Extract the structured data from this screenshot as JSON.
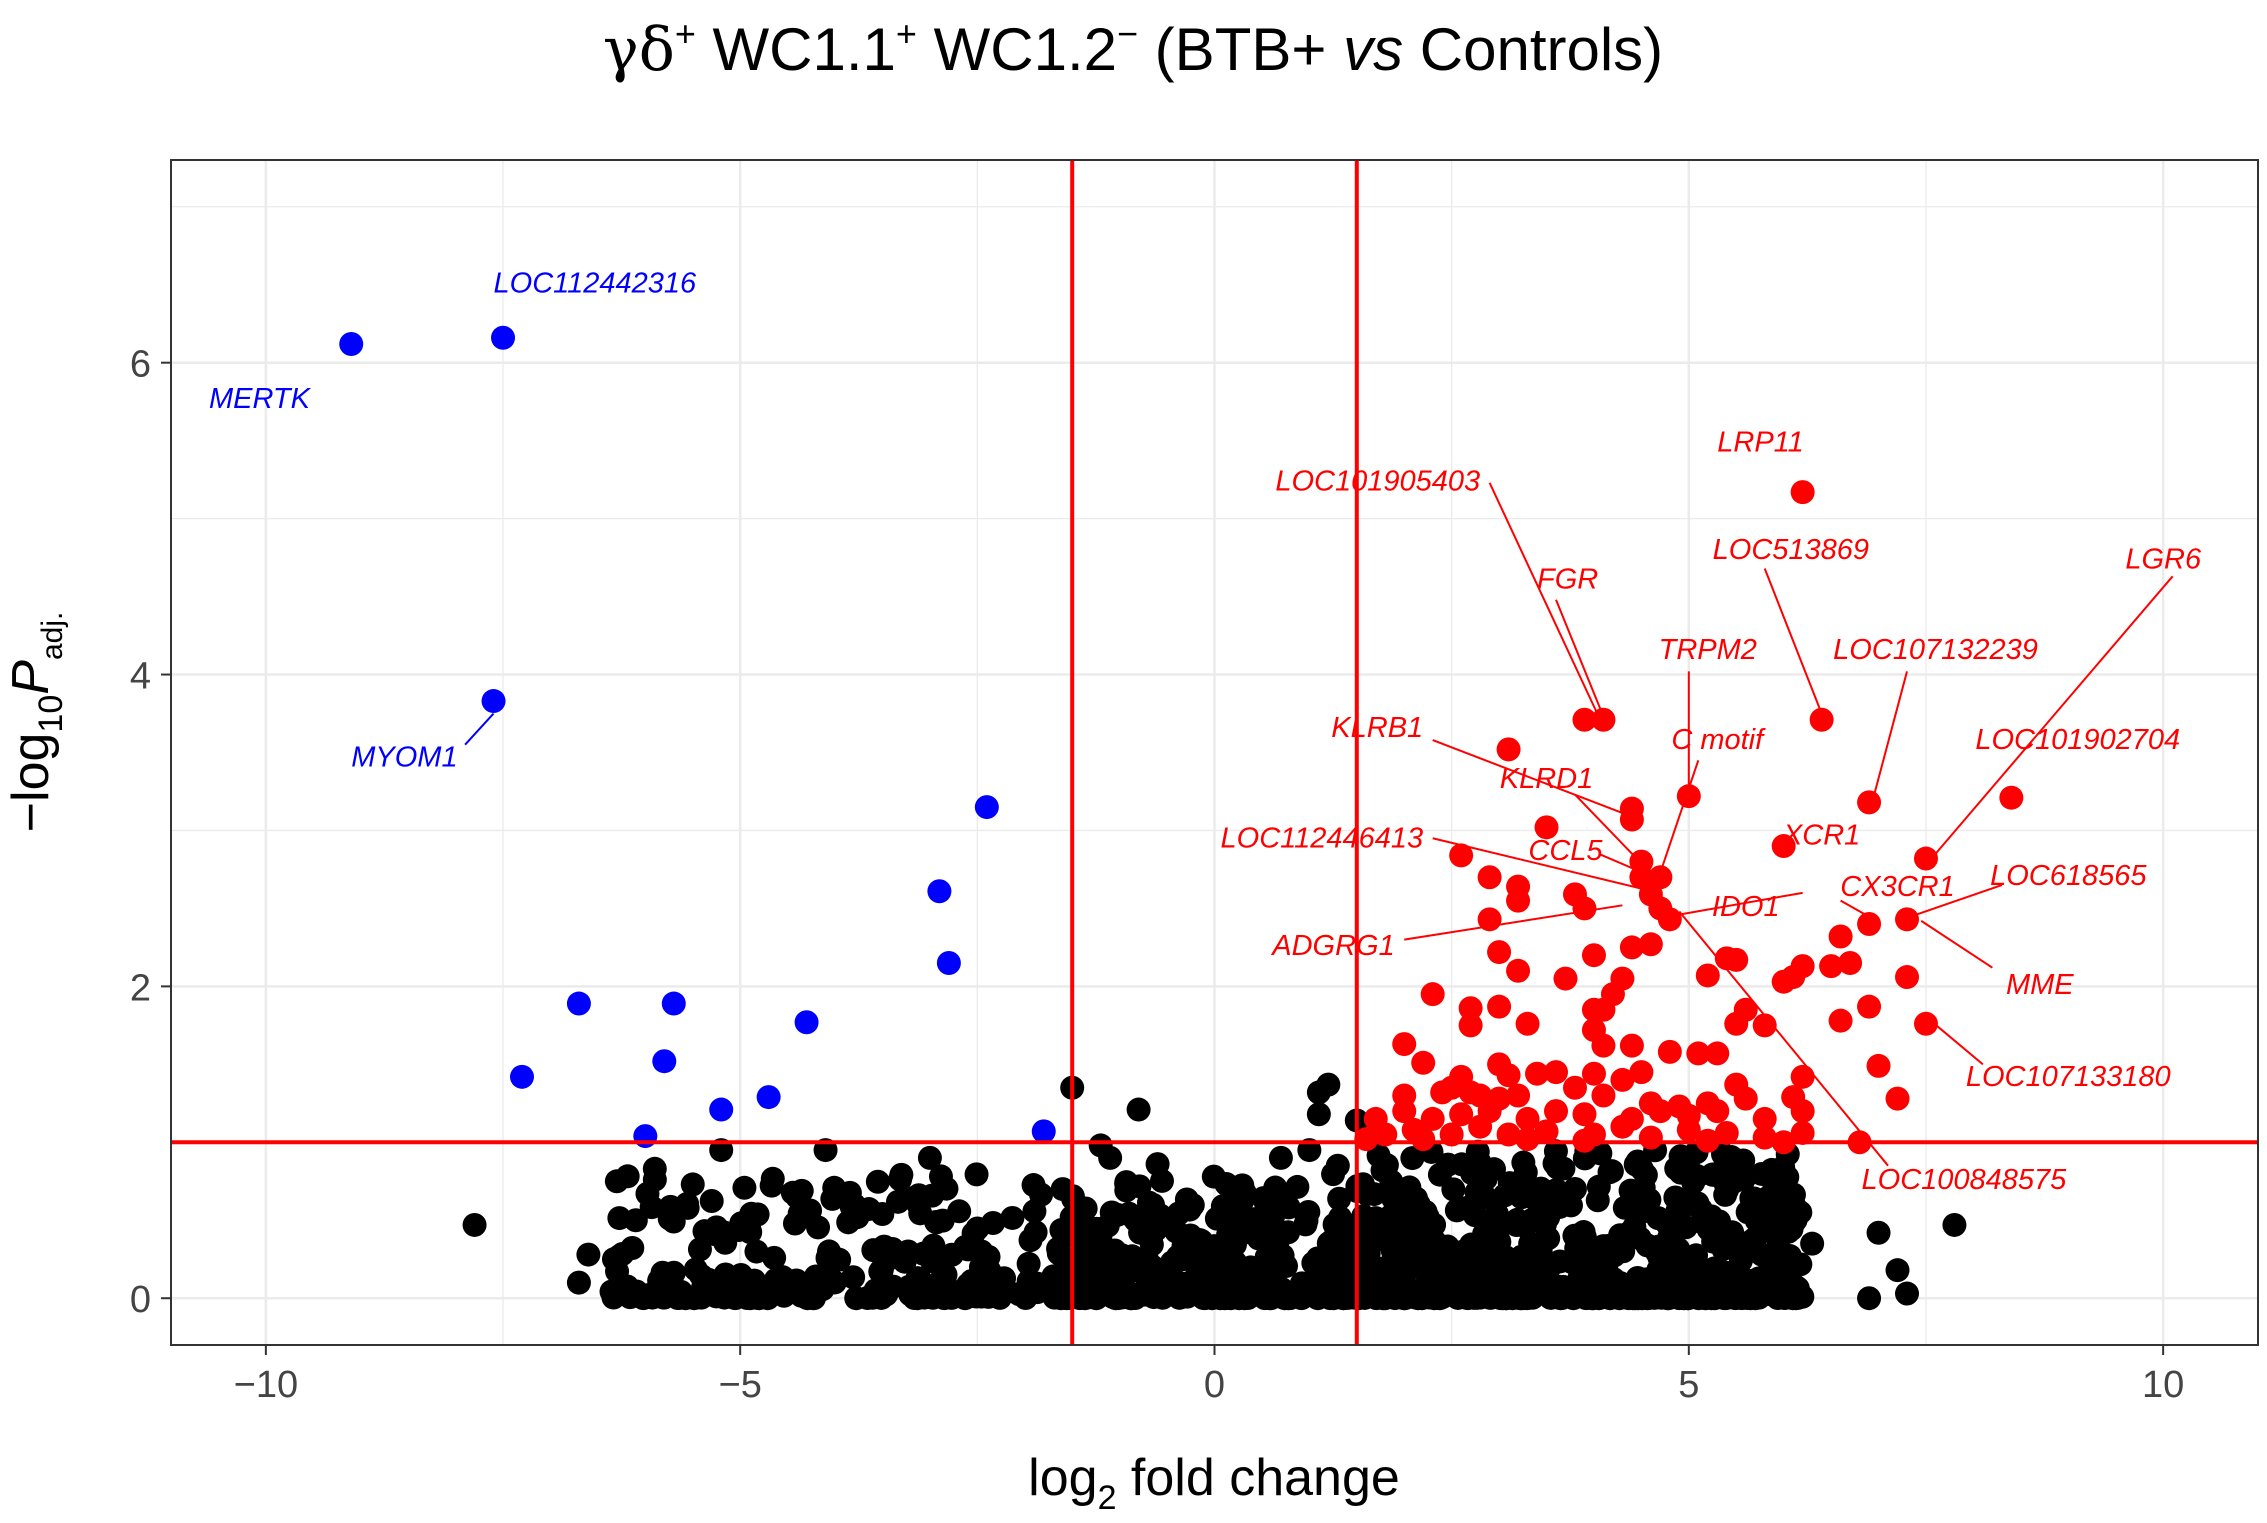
{
  "chart_data": {
    "type": "scatter",
    "title": {
      "prefix": "γδ",
      "prefix_sup": "+",
      "part1": " WC1.1",
      "part1_sup": "+",
      "part2": " WC1.2",
      "part2_sup": "−",
      "paren_open": " (",
      "part3": "BTB+ ",
      "vs": "vs",
      "part4": " Controls",
      "paren_close": ")"
    },
    "xlabel": {
      "main": "log",
      "sub": "2",
      "rest": " fold change"
    },
    "ylabel": {
      "main": "−log",
      "sub": "10",
      "italic": "P",
      "sub2": "adj."
    },
    "xlim": [
      -11,
      11
    ],
    "ylim": [
      -0.3,
      7.3
    ],
    "x_ticks": [
      -10,
      -5,
      0,
      5,
      10
    ],
    "x_tick_labels": [
      "−10",
      "−5",
      "0",
      "5",
      "10"
    ],
    "y_ticks": [
      0,
      2,
      4,
      6
    ],
    "y_tick_labels": [
      "0",
      "2",
      "4",
      "6"
    ],
    "thresholds": {
      "fc_left": -1.5,
      "fc_right": 1.5,
      "p": 1.0
    },
    "colors": {
      "up": "#ff0000",
      "down": "#0000ff",
      "ns": "#000000",
      "threshold": "#ff0000",
      "grid": "#ebebeb"
    },
    "down_points": [
      [
        -9.1,
        6.12
      ],
      [
        -7.5,
        6.16
      ],
      [
        -7.6,
        3.83
      ],
      [
        -2.4,
        3.15
      ],
      [
        -2.9,
        2.61
      ],
      [
        -2.8,
        2.15
      ],
      [
        -6.7,
        1.89
      ],
      [
        -5.7,
        1.89
      ],
      [
        -4.3,
        1.77
      ],
      [
        -5.8,
        1.52
      ],
      [
        -7.3,
        1.42
      ],
      [
        -4.7,
        1.29
      ],
      [
        -5.2,
        1.21
      ],
      [
        -6.0,
        1.04
      ],
      [
        -1.8,
        1.07
      ]
    ],
    "up_points": [
      [
        6.2,
        5.17
      ],
      [
        3.9,
        3.71
      ],
      [
        4.1,
        3.71
      ],
      [
        6.4,
        3.71
      ],
      [
        3.1,
        3.52
      ],
      [
        5.0,
        3.22
      ],
      [
        8.4,
        3.21
      ],
      [
        6.9,
        3.18
      ],
      [
        4.4,
        3.14
      ],
      [
        4.4,
        3.07
      ],
      [
        3.5,
        3.02
      ],
      [
        6.0,
        2.9
      ],
      [
        2.6,
        2.84
      ],
      [
        4.5,
        2.8
      ],
      [
        7.5,
        2.82
      ],
      [
        2.9,
        2.7
      ],
      [
        4.5,
        2.7
      ],
      [
        4.7,
        2.7
      ],
      [
        3.2,
        2.64
      ],
      [
        3.8,
        2.59
      ],
      [
        4.6,
        2.59
      ],
      [
        3.2,
        2.55
      ],
      [
        4.7,
        2.5
      ],
      [
        3.9,
        2.5
      ],
      [
        4.8,
        2.43
      ],
      [
        6.9,
        2.4
      ],
      [
        7.3,
        2.43
      ],
      [
        2.9,
        2.43
      ],
      [
        6.6,
        2.32
      ],
      [
        4.6,
        2.27
      ],
      [
        3.0,
        2.22
      ],
      [
        4.4,
        2.25
      ],
      [
        4.0,
        2.2
      ],
      [
        5.4,
        2.18
      ],
      [
        5.5,
        2.17
      ],
      [
        6.2,
        2.13
      ],
      [
        6.5,
        2.13
      ],
      [
        6.7,
        2.15
      ],
      [
        5.2,
        2.07
      ],
      [
        3.2,
        2.1
      ],
      [
        6.0,
        2.03
      ],
      [
        4.3,
        2.05
      ],
      [
        3.7,
        2.05
      ],
      [
        6.1,
        2.06
      ],
      [
        7.3,
        2.06
      ],
      [
        5.6,
        1.85
      ],
      [
        5.8,
        1.75
      ],
      [
        2.3,
        1.95
      ],
      [
        4.2,
        1.95
      ],
      [
        4.0,
        1.85
      ],
      [
        2.7,
        1.86
      ],
      [
        3.0,
        1.87
      ],
      [
        4.1,
        1.85
      ],
      [
        6.6,
        1.78
      ],
      [
        5.5,
        1.76
      ],
      [
        6.9,
        1.87
      ],
      [
        7.5,
        1.76
      ],
      [
        2.7,
        1.75
      ],
      [
        3.3,
        1.76
      ],
      [
        4.0,
        1.72
      ],
      [
        4.1,
        1.62
      ],
      [
        2.0,
        1.63
      ],
      [
        4.4,
        1.62
      ],
      [
        4.8,
        1.58
      ],
      [
        5.1,
        1.57
      ],
      [
        5.3,
        1.57
      ],
      [
        2.2,
        1.51
      ],
      [
        3.0,
        1.5
      ],
      [
        7.0,
        1.49
      ],
      [
        3.4,
        1.44
      ],
      [
        3.6,
        1.45
      ],
      [
        4.0,
        1.44
      ],
      [
        4.5,
        1.45
      ],
      [
        2.6,
        1.42
      ],
      [
        3.1,
        1.43
      ],
      [
        4.3,
        1.4
      ],
      [
        5.5,
        1.37
      ],
      [
        6.2,
        1.42
      ],
      [
        2.7,
        1.32
      ],
      [
        2.8,
        1.3
      ],
      [
        3.8,
        1.35
      ],
      [
        4.1,
        1.3
      ],
      [
        2.0,
        1.3
      ],
      [
        2.4,
        1.32
      ],
      [
        2.5,
        1.35
      ],
      [
        3.0,
        1.28
      ],
      [
        3.2,
        1.3
      ],
      [
        4.6,
        1.25
      ],
      [
        4.9,
        1.23
      ],
      [
        5.2,
        1.25
      ],
      [
        5.6,
        1.28
      ],
      [
        6.1,
        1.29
      ],
      [
        7.2,
        1.28
      ],
      [
        1.7,
        1.15
      ],
      [
        2.0,
        1.2
      ],
      [
        2.3,
        1.15
      ],
      [
        2.6,
        1.18
      ],
      [
        2.9,
        1.2
      ],
      [
        3.3,
        1.15
      ],
      [
        3.6,
        1.2
      ],
      [
        3.9,
        1.18
      ],
      [
        4.4,
        1.15
      ],
      [
        4.7,
        1.2
      ],
      [
        5.0,
        1.17
      ],
      [
        5.3,
        1.2
      ],
      [
        5.8,
        1.15
      ],
      [
        6.2,
        1.2
      ],
      [
        1.8,
        1.05
      ],
      [
        2.1,
        1.08
      ],
      [
        2.5,
        1.05
      ],
      [
        2.8,
        1.1
      ],
      [
        3.1,
        1.05
      ],
      [
        3.5,
        1.07
      ],
      [
        4.0,
        1.05
      ],
      [
        4.3,
        1.1
      ],
      [
        4.6,
        1.03
      ],
      [
        5.0,
        1.08
      ],
      [
        5.4,
        1.06
      ],
      [
        5.8,
        1.03
      ],
      [
        6.2,
        1.06
      ],
      [
        6.8,
        1.0
      ],
      [
        1.6,
        1.02
      ],
      [
        2.2,
        1.02
      ],
      [
        3.3,
        1.02
      ],
      [
        3.9,
        1.01
      ],
      [
        5.2,
        1.01
      ],
      [
        6.0,
        1.0
      ]
    ],
    "ns_points": [
      [
        -1.5,
        1.35
      ],
      [
        1.2,
        1.37
      ],
      [
        1.1,
        1.32
      ],
      [
        -0.8,
        1.21
      ],
      [
        1.1,
        1.18
      ],
      [
        1.5,
        1.14
      ],
      [
        -1.2,
        0.98
      ],
      [
        -1.1,
        0.9
      ],
      [
        0.7,
        0.9
      ],
      [
        1.0,
        0.95
      ],
      [
        -0.6,
        0.86
      ],
      [
        -3.0,
        0.9
      ],
      [
        -4.1,
        0.95
      ],
      [
        -5.2,
        0.95
      ],
      [
        -5.9,
        0.83
      ],
      [
        -6.3,
        0.75
      ],
      [
        -5.5,
        0.73
      ],
      [
        -6.1,
        0.5
      ],
      [
        -6.6,
        0.28
      ],
      [
        -6.7,
        0.1
      ],
      [
        -7.8,
        0.47
      ],
      [
        -4.4,
        0.65
      ],
      [
        -3.8,
        0.6
      ],
      [
        -1.6,
        0.7
      ],
      [
        1.3,
        0.85
      ],
      [
        7.0,
        0.42
      ],
      [
        7.8,
        0.47
      ],
      [
        7.2,
        0.18
      ],
      [
        7.3,
        0.03
      ],
      [
        6.9,
        0.0
      ],
      [
        6.1,
        0.53
      ],
      [
        6.3,
        0.35
      ],
      [
        5.9,
        0.7
      ],
      [
        6.0,
        0.24
      ]
    ],
    "ns_cloud": [
      {
        "x_from": -6.4,
        "x_to": -1.5,
        "count": 240,
        "max_y": 0.8
      },
      {
        "x_from": -1.6,
        "x_to": 1.6,
        "count": 340,
        "max_y": 0.8
      },
      {
        "x_from": 1.5,
        "x_to": 6.2,
        "count": 600,
        "max_y": 0.95
      }
    ],
    "labels": [
      {
        "text": "MERTK",
        "color": "down",
        "x": -10.6,
        "y": 5.76,
        "anchor": "start"
      },
      {
        "text": "LOC112442316",
        "color": "down",
        "x": -7.6,
        "y": 6.5,
        "anchor": "start"
      },
      {
        "text": "MYOM1",
        "color": "down",
        "x": -9.1,
        "y": 3.46,
        "anchor": "start",
        "line_to": [
          -7.6,
          3.75
        ],
        "line_from": [
          -7.9,
          3.55
        ]
      },
      {
        "text": "LRP11",
        "color": "up",
        "x": 5.3,
        "y": 5.48,
        "anchor": "start"
      },
      {
        "text": "LOC101905403",
        "color": "up",
        "x": 2.8,
        "y": 5.23,
        "anchor": "end",
        "line_from": [
          2.9,
          5.23
        ],
        "line_to": [
          4.05,
          3.73
        ]
      },
      {
        "text": "LOC513869",
        "color": "up",
        "x": 6.9,
        "y": 4.79,
        "anchor": "end",
        "line_from": [
          5.8,
          4.68
        ],
        "line_to": [
          6.4,
          3.75
        ]
      },
      {
        "text": "LGR6",
        "color": "up",
        "x": 10.4,
        "y": 4.73,
        "anchor": "end",
        "line_from": [
          10.1,
          4.63
        ],
        "line_to": [
          7.6,
          2.85
        ]
      },
      {
        "text": "FGR",
        "color": "up",
        "x": 3.4,
        "y": 4.6,
        "anchor": "start",
        "line_from": [
          3.6,
          4.48
        ],
        "line_to": [
          4.1,
          3.73
        ]
      },
      {
        "text": "TRPM2",
        "color": "up",
        "x": 5.2,
        "y": 4.15,
        "anchor": "middle",
        "line_from": [
          5.0,
          4.02
        ],
        "line_to": [
          5.0,
          3.25
        ]
      },
      {
        "text": "LOC107132239",
        "color": "up",
        "x": 7.6,
        "y": 4.15,
        "anchor": "middle",
        "line_from": [
          7.3,
          4.02
        ],
        "line_to": [
          6.95,
          3.22
        ]
      },
      {
        "text": "KLRB1",
        "color": "up",
        "x": 2.2,
        "y": 3.65,
        "anchor": "end",
        "line_from": [
          2.3,
          3.58
        ],
        "line_to": [
          4.35,
          3.1
        ]
      },
      {
        "text": "C motif",
        "color": "up",
        "x": 5.3,
        "y": 3.57,
        "anchor": "middle",
        "line_from": [
          5.1,
          3.45
        ],
        "line_to": [
          4.7,
          2.73
        ]
      },
      {
        "text": "LOC101902704",
        "color": "up",
        "x": 9.1,
        "y": 3.57,
        "anchor": "middle"
      },
      {
        "text": "KLRD1",
        "color": "up",
        "x": 3.5,
        "y": 3.32,
        "anchor": "middle",
        "line_from": [
          3.8,
          3.23
        ],
        "line_to": [
          4.45,
          2.82
        ]
      },
      {
        "text": "XCR1",
        "color": "up",
        "x": 6.4,
        "y": 2.96,
        "anchor": "middle"
      },
      {
        "text": "LOC112446413",
        "color": "up",
        "x": 2.2,
        "y": 2.94,
        "anchor": "end",
        "line_from": [
          2.3,
          2.95
        ],
        "line_to": [
          4.55,
          2.62
        ]
      },
      {
        "text": "CCL5",
        "color": "up",
        "x": 3.7,
        "y": 2.86,
        "anchor": "middle",
        "line_from": [
          4.05,
          2.85
        ],
        "line_to": [
          4.55,
          2.72
        ]
      },
      {
        "text": "CX3CR1",
        "color": "up",
        "x": 7.2,
        "y": 2.63,
        "anchor": "middle",
        "line_from": [
          6.6,
          2.55
        ],
        "line_to": [
          6.95,
          2.43
        ]
      },
      {
        "text": "LOC618565",
        "color": "up",
        "x": 9.0,
        "y": 2.7,
        "anchor": "middle",
        "line_from": [
          8.3,
          2.65
        ],
        "line_to": [
          7.35,
          2.45
        ]
      },
      {
        "text": "IDO1",
        "color": "up",
        "x": 5.6,
        "y": 2.5,
        "anchor": "middle",
        "line_from": [
          6.2,
          2.6
        ],
        "line_to": [
          4.8,
          2.45
        ]
      },
      {
        "text": "ADGRG1",
        "color": "up",
        "x": 1.9,
        "y": 2.25,
        "anchor": "end",
        "line_from": [
          2.0,
          2.3
        ],
        "line_to": [
          4.3,
          2.52
        ]
      },
      {
        "text": "MME",
        "color": "up",
        "x": 8.7,
        "y": 2.0,
        "anchor": "middle",
        "line_from": [
          8.2,
          2.12
        ],
        "line_to": [
          7.45,
          2.42
        ]
      },
      {
        "text": "LOC107133180",
        "color": "up",
        "x": 9.0,
        "y": 1.41,
        "anchor": "middle",
        "line_from": [
          8.1,
          1.5
        ],
        "line_to": [
          7.55,
          1.78
        ]
      },
      {
        "text": "LOC100848575",
        "color": "up",
        "x": 7.9,
        "y": 0.75,
        "anchor": "middle",
        "line_from": [
          7.1,
          0.85
        ],
        "line_to": [
          4.9,
          2.48
        ]
      }
    ]
  }
}
